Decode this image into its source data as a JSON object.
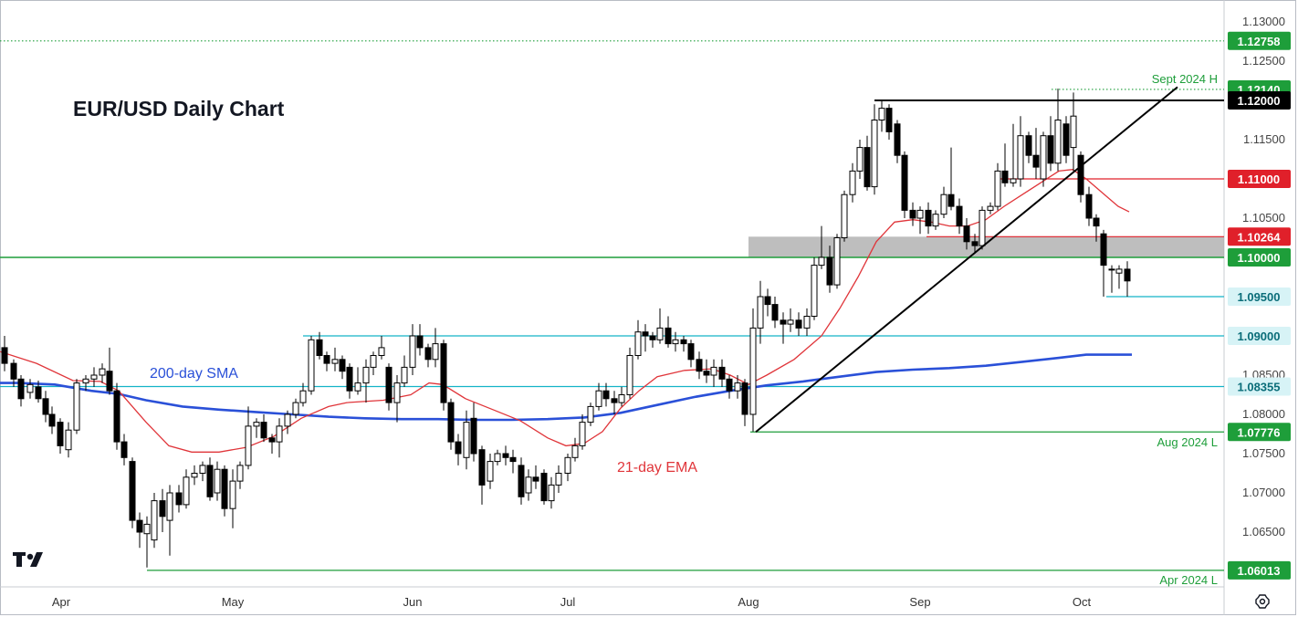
{
  "chart_data": {
    "type": "candlestick",
    "title": "EUR/USD Daily Chart",
    "x_labels": [
      "Apr",
      "May",
      "Jun",
      "Jul",
      "Aug",
      "Sep",
      "Oct"
    ],
    "y_ticks": [
      "1.13000",
      "1.12500",
      "1.12000",
      "1.11500",
      "1.11000",
      "1.10500",
      "1.10000",
      "1.09500",
      "1.09000",
      "1.08500",
      "1.08000",
      "1.07500",
      "1.07000",
      "1.06500"
    ],
    "ylim": [
      1.0585,
      1.1325
    ],
    "levels": [
      {
        "value": 1.12758,
        "label": "1.12758",
        "color": "#1e9e3a",
        "style": "dotted"
      },
      {
        "value": 1.1214,
        "label": "1.12140",
        "color": "#1e9e3a",
        "style": "dotted",
        "note": "Sept 2024 H"
      },
      {
        "value": 1.12,
        "label": "1.12000",
        "color": "#000000",
        "style": "solid"
      },
      {
        "value": 1.11,
        "label": "1.11000",
        "color": "#e0202a",
        "style": "solid"
      },
      {
        "value": 1.10264,
        "label": "1.10264",
        "color": "#e0202a",
        "style": "solid"
      },
      {
        "value": 1.1,
        "label": "1.10000",
        "color": "#1e9e3a",
        "style": "solid"
      },
      {
        "value": 1.095,
        "label": "1.09500",
        "color": "#14b3c7",
        "style": "solid"
      },
      {
        "value": 1.09,
        "label": "1.09000",
        "color": "#14b3c7",
        "style": "solid"
      },
      {
        "value": 1.08355,
        "label": "1.08355",
        "color": "#14b3c7",
        "style": "solid"
      },
      {
        "value": 1.07776,
        "label": "1.07776",
        "color": "#1e9e3a",
        "style": "solid",
        "note": "Aug 2024 L"
      },
      {
        "value": 1.06013,
        "label": "1.06013",
        "color": "#1e9e3a",
        "style": "solid",
        "note": "Apr 2024 L"
      }
    ],
    "annotations": {
      "sma": "200-day SMA",
      "ema": "21-day EMA",
      "sept_high": "Sept 2024 H",
      "aug_low": "Aug 2024 L",
      "apr_low": "Apr 2024 L"
    },
    "zone": {
      "from": 1.1,
      "to": 1.10264
    },
    "sma200": [
      [
        0,
        1.084
      ],
      [
        20,
        1.084
      ],
      [
        60,
        1.0838
      ],
      [
        100,
        1.083
      ],
      [
        130,
        1.0826
      ],
      [
        160,
        1.0818
      ],
      [
        200,
        1.081
      ],
      [
        240,
        1.0806
      ],
      [
        280,
        1.0803
      ],
      [
        320,
        1.08
      ],
      [
        360,
        1.0797
      ],
      [
        400,
        1.0795
      ],
      [
        440,
        1.0794
      ],
      [
        480,
        1.0794
      ],
      [
        520,
        1.0793
      ],
      [
        560,
        1.0793
      ],
      [
        600,
        1.0794
      ],
      [
        640,
        1.0796
      ],
      [
        680,
        1.0802
      ],
      [
        720,
        1.0812
      ],
      [
        760,
        1.0822
      ],
      [
        800,
        1.083
      ],
      [
        840,
        1.0837
      ],
      [
        880,
        1.0842
      ],
      [
        920,
        1.0848
      ],
      [
        960,
        1.0854
      ],
      [
        1000,
        1.0857
      ],
      [
        1040,
        1.0859
      ],
      [
        1080,
        1.0862
      ],
      [
        1120,
        1.0867
      ],
      [
        1160,
        1.0872
      ],
      [
        1190,
        1.0876
      ],
      [
        1220,
        1.0876
      ],
      [
        1240,
        1.0876
      ]
    ],
    "ema21": [
      [
        0,
        1.088
      ],
      [
        40,
        1.0865
      ],
      [
        80,
        1.0843
      ],
      [
        110,
        1.0842
      ],
      [
        130,
        1.083
      ],
      [
        160,
        1.079
      ],
      [
        185,
        1.076
      ],
      [
        210,
        1.0752
      ],
      [
        240,
        1.0752
      ],
      [
        270,
        1.0758
      ],
      [
        300,
        1.0772
      ],
      [
        330,
        1.0795
      ],
      [
        360,
        1.081
      ],
      [
        380,
        1.0815
      ],
      [
        420,
        1.0818
      ],
      [
        450,
        1.0825
      ],
      [
        470,
        1.084
      ],
      [
        485,
        1.0838
      ],
      [
        510,
        1.082
      ],
      [
        540,
        1.0806
      ],
      [
        570,
        1.0792
      ],
      [
        600,
        1.077
      ],
      [
        620,
        1.076
      ],
      [
        640,
        1.0763
      ],
      [
        660,
        1.0778
      ],
      [
        680,
        1.0808
      ],
      [
        700,
        1.083
      ],
      [
        720,
        1.0848
      ],
      [
        750,
        1.0856
      ],
      [
        780,
        1.0858
      ],
      [
        800,
        1.085
      ],
      [
        820,
        1.0838
      ],
      [
        840,
        1.085
      ],
      [
        870,
        1.087
      ],
      [
        900,
        1.09
      ],
      [
        920,
        1.0935
      ],
      [
        940,
        1.0975
      ],
      [
        960,
        1.102
      ],
      [
        980,
        1.1045
      ],
      [
        1000,
        1.1048
      ],
      [
        1020,
        1.1045
      ],
      [
        1040,
        1.104
      ],
      [
        1060,
        1.104
      ],
      [
        1080,
        1.1048
      ],
      [
        1100,
        1.1065
      ],
      [
        1120,
        1.108
      ],
      [
        1140,
        1.1095
      ],
      [
        1160,
        1.111
      ],
      [
        1175,
        1.1112
      ],
      [
        1190,
        1.11
      ],
      [
        1210,
        1.108
      ],
      [
        1225,
        1.1065
      ],
      [
        1237,
        1.1058
      ]
    ],
    "trendline": {
      "from": [
        828,
        1.07776
      ],
      "to": [
        1290,
        1.1217
      ]
    },
    "resistance_line": {
      "from": [
        958,
        1.12
      ],
      "to": [
        1340,
        1.12
      ]
    },
    "candles": [
      [
        5,
        1.0885,
        1.0865,
        1.09,
        1.0855
      ],
      [
        15,
        1.0865,
        1.0845,
        1.087,
        1.0835
      ],
      [
        23,
        1.0845,
        1.082,
        1.085,
        1.081
      ],
      [
        33,
        1.0828,
        1.0838,
        1.0845,
        1.082
      ],
      [
        42,
        1.0835,
        1.082,
        1.0843,
        1.0815
      ],
      [
        50,
        1.082,
        1.08,
        1.083,
        1.079
      ],
      [
        57,
        1.08,
        1.0785,
        1.081,
        1.0775
      ],
      [
        66,
        1.079,
        1.076,
        1.0795,
        1.075
      ],
      [
        75,
        1.0755,
        1.078,
        1.079,
        1.0745
      ],
      [
        84,
        1.078,
        1.084,
        1.0845,
        1.0775
      ],
      [
        94,
        1.084,
        1.0845,
        1.085,
        1.083
      ],
      [
        103,
        1.0845,
        1.085,
        1.086,
        1.0835
      ],
      [
        112,
        1.085,
        1.0858,
        1.0865,
        1.084
      ],
      [
        120,
        1.0855,
        1.083,
        1.0885,
        1.0825
      ],
      [
        128,
        1.083,
        1.0765,
        1.084,
        1.0755
      ],
      [
        136,
        1.0765,
        1.0745,
        1.0775,
        1.0735
      ],
      [
        145,
        1.074,
        1.0665,
        1.0745,
        1.0655
      ],
      [
        153,
        1.0665,
        1.065,
        1.0675,
        1.063
      ],
      [
        161,
        1.0648,
        1.066,
        1.067,
        1.0605
      ],
      [
        169,
        1.064,
        1.069,
        1.07,
        1.063
      ],
      [
        178,
        1.069,
        1.067,
        1.0705,
        1.065
      ],
      [
        186,
        1.0665,
        1.07,
        1.071,
        1.062
      ],
      [
        196,
        1.07,
        1.0685,
        1.071,
        1.0675
      ],
      [
        204,
        1.0685,
        1.072,
        1.073,
        1.068
      ],
      [
        213,
        1.072,
        1.0725,
        1.0735,
        1.071
      ],
      [
        222,
        1.0725,
        1.0735,
        1.074,
        1.0715
      ],
      [
        230,
        1.0735,
        1.0695,
        1.0745,
        1.069
      ],
      [
        238,
        1.07,
        1.073,
        1.074,
        1.069
      ],
      [
        246,
        1.073,
        1.068,
        1.0735,
        1.067
      ],
      [
        255,
        1.068,
        1.0715,
        1.073,
        1.0655
      ],
      [
        263,
        1.0715,
        1.0735,
        1.074,
        1.0705
      ],
      [
        272,
        1.0735,
        1.0785,
        1.081,
        1.073
      ],
      [
        281,
        1.0785,
        1.079,
        1.0795,
        1.077
      ],
      [
        289,
        1.079,
        1.077,
        1.08,
        1.0765
      ],
      [
        298,
        1.077,
        1.0765,
        1.0775,
        1.075
      ],
      [
        306,
        1.0765,
        1.0785,
        1.0795,
        1.0745
      ],
      [
        315,
        1.0785,
        1.08,
        1.0805,
        1.0775
      ],
      [
        324,
        1.08,
        1.0815,
        1.082,
        1.0795
      ],
      [
        332,
        1.0815,
        1.083,
        1.084,
        1.081
      ],
      [
        341,
        1.083,
        1.0895,
        1.09,
        1.0825
      ],
      [
        350,
        1.0895,
        1.0875,
        1.0905,
        1.087
      ],
      [
        358,
        1.0875,
        1.0865,
        1.088,
        1.0855
      ],
      [
        367,
        1.0865,
        1.087,
        1.0885,
        1.0855
      ],
      [
        375,
        1.087,
        1.0855,
        1.0875,
        1.0845
      ],
      [
        383,
        1.086,
        1.083,
        1.0865,
        1.082
      ],
      [
        392,
        1.083,
        1.084,
        1.086,
        1.0825
      ],
      [
        401,
        1.084,
        1.086,
        1.087,
        1.0815
      ],
      [
        409,
        1.086,
        1.0875,
        1.088,
        1.085
      ],
      [
        418,
        1.0875,
        1.0885,
        1.09,
        1.087
      ],
      [
        426,
        1.086,
        1.0815,
        1.0865,
        1.0805
      ],
      [
        435,
        1.0815,
        1.084,
        1.085,
        1.079
      ],
      [
        443,
        1.084,
        1.086,
        1.0875,
        1.0835
      ],
      [
        452,
        1.086,
        1.09,
        1.0915,
        1.085
      ],
      [
        460,
        1.09,
        1.0885,
        1.0915,
        1.0875
      ],
      [
        469,
        1.0885,
        1.087,
        1.089,
        1.086
      ],
      [
        477,
        1.087,
        1.089,
        1.091,
        1.086
      ],
      [
        486,
        1.089,
        1.0815,
        1.0895,
        1.0805
      ],
      [
        494,
        1.0815,
        1.0765,
        1.082,
        1.0755
      ],
      [
        502,
        1.0765,
        1.075,
        1.0775,
        1.0735
      ],
      [
        511,
        1.0745,
        1.079,
        1.0805,
        1.073
      ],
      [
        519,
        1.0795,
        1.075,
        1.0815,
        1.074
      ],
      [
        528,
        1.0755,
        1.071,
        1.076,
        1.0685
      ],
      [
        537,
        1.0715,
        1.074,
        1.075,
        1.0705
      ],
      [
        545,
        1.074,
        1.075,
        1.0755,
        1.0735
      ],
      [
        554,
        1.075,
        1.0745,
        1.076,
        1.0735
      ],
      [
        562,
        1.0745,
        1.074,
        1.0755,
        1.0725
      ],
      [
        571,
        1.0735,
        1.0695,
        1.0745,
        1.0685
      ],
      [
        579,
        1.07,
        1.072,
        1.073,
        1.069
      ],
      [
        587,
        1.072,
        1.0715,
        1.0735,
        1.0705
      ],
      [
        596,
        1.0725,
        1.069,
        1.073,
        1.0685
      ],
      [
        604,
        1.069,
        1.071,
        1.072,
        1.068
      ],
      [
        612,
        1.071,
        1.0725,
        1.0735,
        1.07
      ],
      [
        622,
        1.0725,
        1.0745,
        1.075,
        1.0715
      ],
      [
        630,
        1.0745,
        1.076,
        1.077,
        1.074
      ],
      [
        638,
        1.076,
        1.079,
        1.08,
        1.0755
      ],
      [
        647,
        1.079,
        1.081,
        1.0815,
        1.0785
      ],
      [
        656,
        1.081,
        1.083,
        1.084,
        1.0805
      ],
      [
        664,
        1.083,
        1.082,
        1.084,
        1.081
      ],
      [
        673,
        1.082,
        1.0815,
        1.083,
        1.08
      ],
      [
        681,
        1.0815,
        1.0825,
        1.0835,
        1.081
      ],
      [
        690,
        1.0825,
        1.0875,
        1.0885,
        1.082
      ],
      [
        699,
        1.0875,
        1.0905,
        1.092,
        1.087
      ],
      [
        707,
        1.0905,
        1.09,
        1.0915,
        1.088
      ],
      [
        715,
        1.09,
        1.0895,
        1.0905,
        1.0885
      ],
      [
        723,
        1.0895,
        1.091,
        1.0935,
        1.089
      ],
      [
        732,
        1.091,
        1.089,
        1.0925,
        1.0885
      ],
      [
        740,
        1.089,
        1.0895,
        1.0905,
        1.088
      ],
      [
        749,
        1.0895,
        1.089,
        1.09,
        1.088
      ],
      [
        757,
        1.089,
        1.087,
        1.0895,
        1.086
      ],
      [
        766,
        1.087,
        1.0855,
        1.088,
        1.0845
      ],
      [
        774,
        1.0855,
        1.085,
        1.087,
        1.084
      ],
      [
        782,
        1.085,
        1.086,
        1.087,
        1.0835
      ],
      [
        791,
        1.086,
        1.0845,
        1.087,
        1.0835
      ],
      [
        799,
        1.0845,
        1.083,
        1.085,
        1.082
      ],
      [
        808,
        1.083,
        1.084,
        1.085,
        1.082
      ],
      [
        816,
        1.084,
        1.08,
        1.0845,
        1.0785
      ],
      [
        825,
        1.08,
        1.091,
        1.0935,
        1.0778
      ],
      [
        833,
        1.091,
        1.095,
        1.097,
        1.089
      ],
      [
        841,
        1.095,
        1.094,
        1.096,
        1.0925
      ],
      [
        849,
        1.094,
        1.092,
        1.095,
        1.091
      ],
      [
        858,
        1.092,
        1.0915,
        1.093,
        1.089
      ],
      [
        866,
        1.0915,
        1.092,
        1.0935,
        1.0905
      ],
      [
        875,
        1.092,
        1.091,
        1.093,
        1.09
      ],
      [
        884,
        1.091,
        1.0925,
        1.0935,
        1.09
      ],
      [
        892,
        1.0925,
        1.099,
        1.1,
        1.092
      ],
      [
        900,
        1.099,
        1.1,
        1.104,
        1.0985
      ],
      [
        909,
        1.1,
        1.0965,
        1.1015,
        1.0955
      ],
      [
        917,
        1.0965,
        1.1025,
        1.103,
        1.096
      ],
      [
        925,
        1.1025,
        1.108,
        1.1085,
        1.102
      ],
      [
        934,
        1.108,
        1.111,
        1.112,
        1.107
      ],
      [
        942,
        1.111,
        1.114,
        1.115,
        1.11
      ],
      [
        950,
        1.114,
        1.109,
        1.1155,
        1.1085
      ],
      [
        958,
        1.109,
        1.1175,
        1.1195,
        1.108
      ],
      [
        966,
        1.1175,
        1.119,
        1.12,
        1.116
      ],
      [
        974,
        1.119,
        1.116,
        1.1195,
        1.115
      ],
      [
        983,
        1.117,
        1.113,
        1.1175,
        1.112
      ],
      [
        991,
        1.113,
        1.106,
        1.1135,
        1.105
      ],
      [
        1000,
        1.106,
        1.105,
        1.107,
        1.104
      ],
      [
        1008,
        1.105,
        1.106,
        1.1065,
        1.103
      ],
      [
        1017,
        1.106,
        1.104,
        1.107,
        1.103
      ],
      [
        1025,
        1.104,
        1.1055,
        1.106,
        1.1035
      ],
      [
        1034,
        1.1055,
        1.108,
        1.109,
        1.105
      ],
      [
        1042,
        1.108,
        1.1065,
        1.114,
        1.106
      ],
      [
        1051,
        1.1065,
        1.104,
        1.1075,
        1.103
      ],
      [
        1059,
        1.104,
        1.102,
        1.105,
        1.101
      ],
      [
        1068,
        1.102,
        1.1015,
        1.103,
        1.1005
      ],
      [
        1076,
        1.1015,
        1.106,
        1.1065,
        1.101
      ],
      [
        1085,
        1.106,
        1.1065,
        1.107,
        1.1055
      ],
      [
        1093,
        1.1065,
        1.111,
        1.112,
        1.106
      ],
      [
        1101,
        1.111,
        1.1095,
        1.1145,
        1.109
      ],
      [
        1110,
        1.1095,
        1.11,
        1.117,
        1.109
      ],
      [
        1118,
        1.11,
        1.1155,
        1.118,
        1.109
      ],
      [
        1127,
        1.1155,
        1.113,
        1.116,
        1.112
      ],
      [
        1135,
        1.113,
        1.1115,
        1.1165,
        1.11
      ],
      [
        1143,
        1.11,
        1.1155,
        1.116,
        1.109
      ],
      [
        1151,
        1.1155,
        1.112,
        1.118,
        1.111
      ],
      [
        1159,
        1.112,
        1.1175,
        1.1215,
        1.111
      ],
      [
        1168,
        1.117,
        1.113,
        1.118,
        1.112
      ],
      [
        1176,
        1.114,
        1.118,
        1.121,
        1.111
      ],
      [
        1184,
        1.113,
        1.108,
        1.1135,
        1.107
      ],
      [
        1193,
        1.108,
        1.105,
        1.109,
        1.104
      ],
      [
        1201,
        1.105,
        1.104,
        1.1055,
        1.102
      ],
      [
        1209,
        1.103,
        1.099,
        1.1035,
        1.095
      ],
      [
        1218,
        1.0985,
        1.0985,
        1.099,
        1.0955
      ],
      [
        1226,
        1.098,
        1.0985,
        1.099,
        1.096
      ],
      [
        1235,
        1.0985,
        1.097,
        1.0995,
        1.095
      ]
    ]
  },
  "colors": {
    "sma": "#2a50d8",
    "ema": "#e0353a",
    "green": "#1e9e3a",
    "cyan": "#14b3c7",
    "zone": "#a8a8a8"
  },
  "icons": {
    "logo": "tradingview-logo-icon",
    "settings": "gear-icon"
  }
}
